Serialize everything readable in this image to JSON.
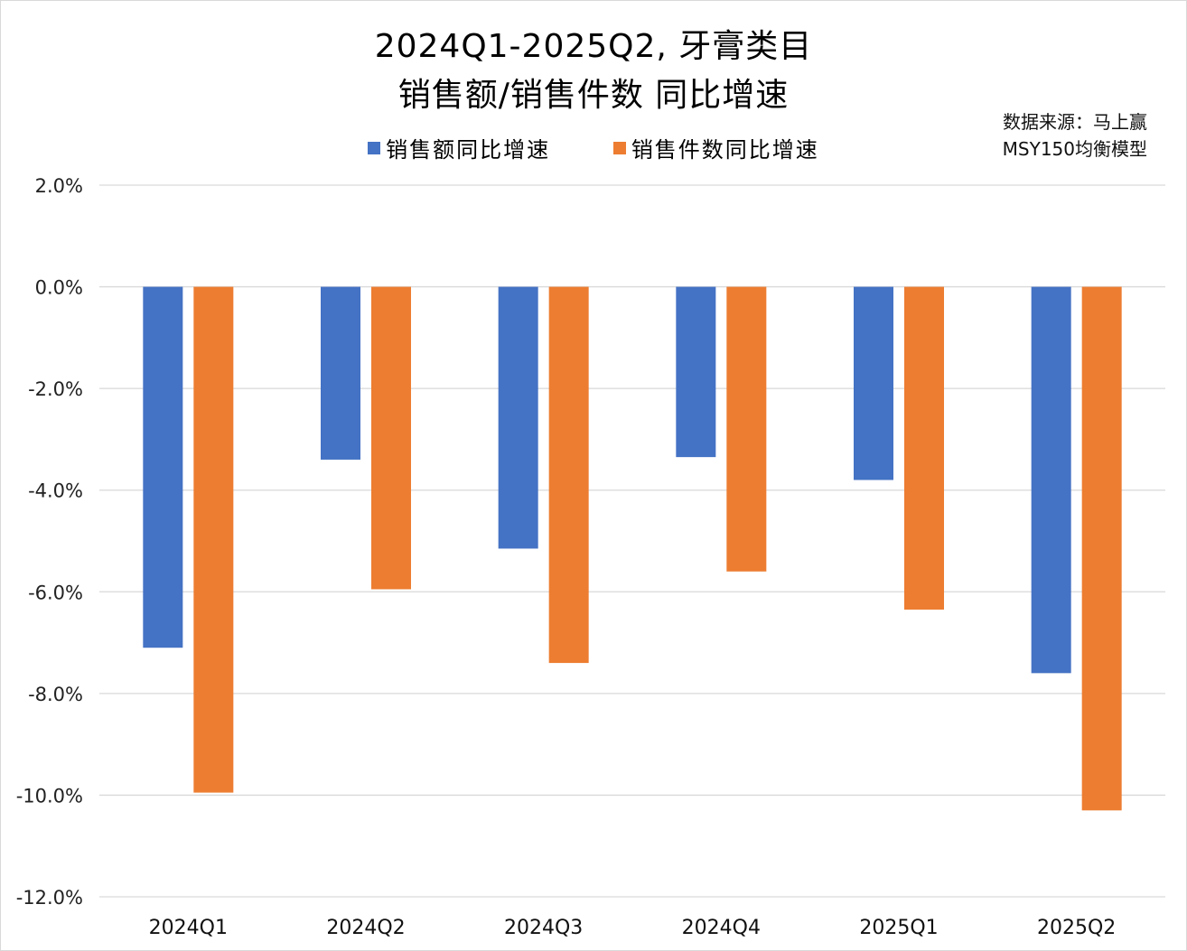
{
  "chart_data": {
    "type": "bar",
    "title_line1": "2024Q1-2025Q2, 牙膏类目",
    "title_line2": "销售额/销售件数 同比增速",
    "source_line1": "数据来源：马上赢",
    "source_line2": "MSY150均衡模型",
    "categories": [
      "2024Q1",
      "2024Q2",
      "2024Q3",
      "2024Q4",
      "2025Q1",
      "2025Q2"
    ],
    "series": [
      {
        "name": "销售额同比增速",
        "color": "#4472C4",
        "values": [
          -7.1,
          -3.4,
          -5.15,
          -3.35,
          -3.8,
          -7.6
        ]
      },
      {
        "name": "销售件数同比增速",
        "color": "#ED7D31",
        "values": [
          -9.95,
          -5.95,
          -7.4,
          -5.6,
          -6.35,
          -10.3
        ]
      }
    ],
    "yticks": [
      "2.0%",
      "0.0%",
      "-2.0%",
      "-4.0%",
      "-6.0%",
      "-8.0%",
      "-10.0%",
      "-12.0%"
    ],
    "ylim": [
      -12,
      2
    ],
    "grid": true,
    "gridline_color": "#d9d9d9",
    "legend_position": "top"
  }
}
